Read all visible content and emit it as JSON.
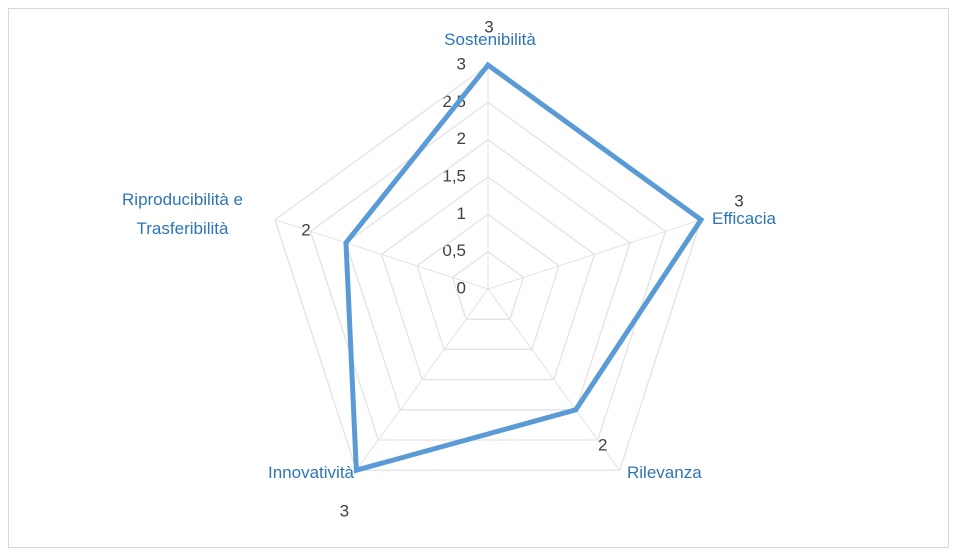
{
  "chart_data": {
    "type": "radar",
    "categories": [
      "Sostenibilità",
      "Efficacia",
      "Rilevanza",
      "Innovatività",
      "Riproducibilità e Trasferibilità"
    ],
    "series": [
      {
        "name": null,
        "color": "#5b9bd5",
        "values": [
          3,
          3,
          2,
          3,
          2
        ]
      }
    ],
    "ylim": [
      0,
      3
    ],
    "yticks": [
      0,
      {
        "value": 0.5,
        "label": "0,5"
      },
      1,
      {
        "value": 1.5,
        "label": "1,5"
      },
      2,
      {
        "value": 2.5,
        "label": "2,5"
      },
      3
    ],
    "grid": true
  }
}
